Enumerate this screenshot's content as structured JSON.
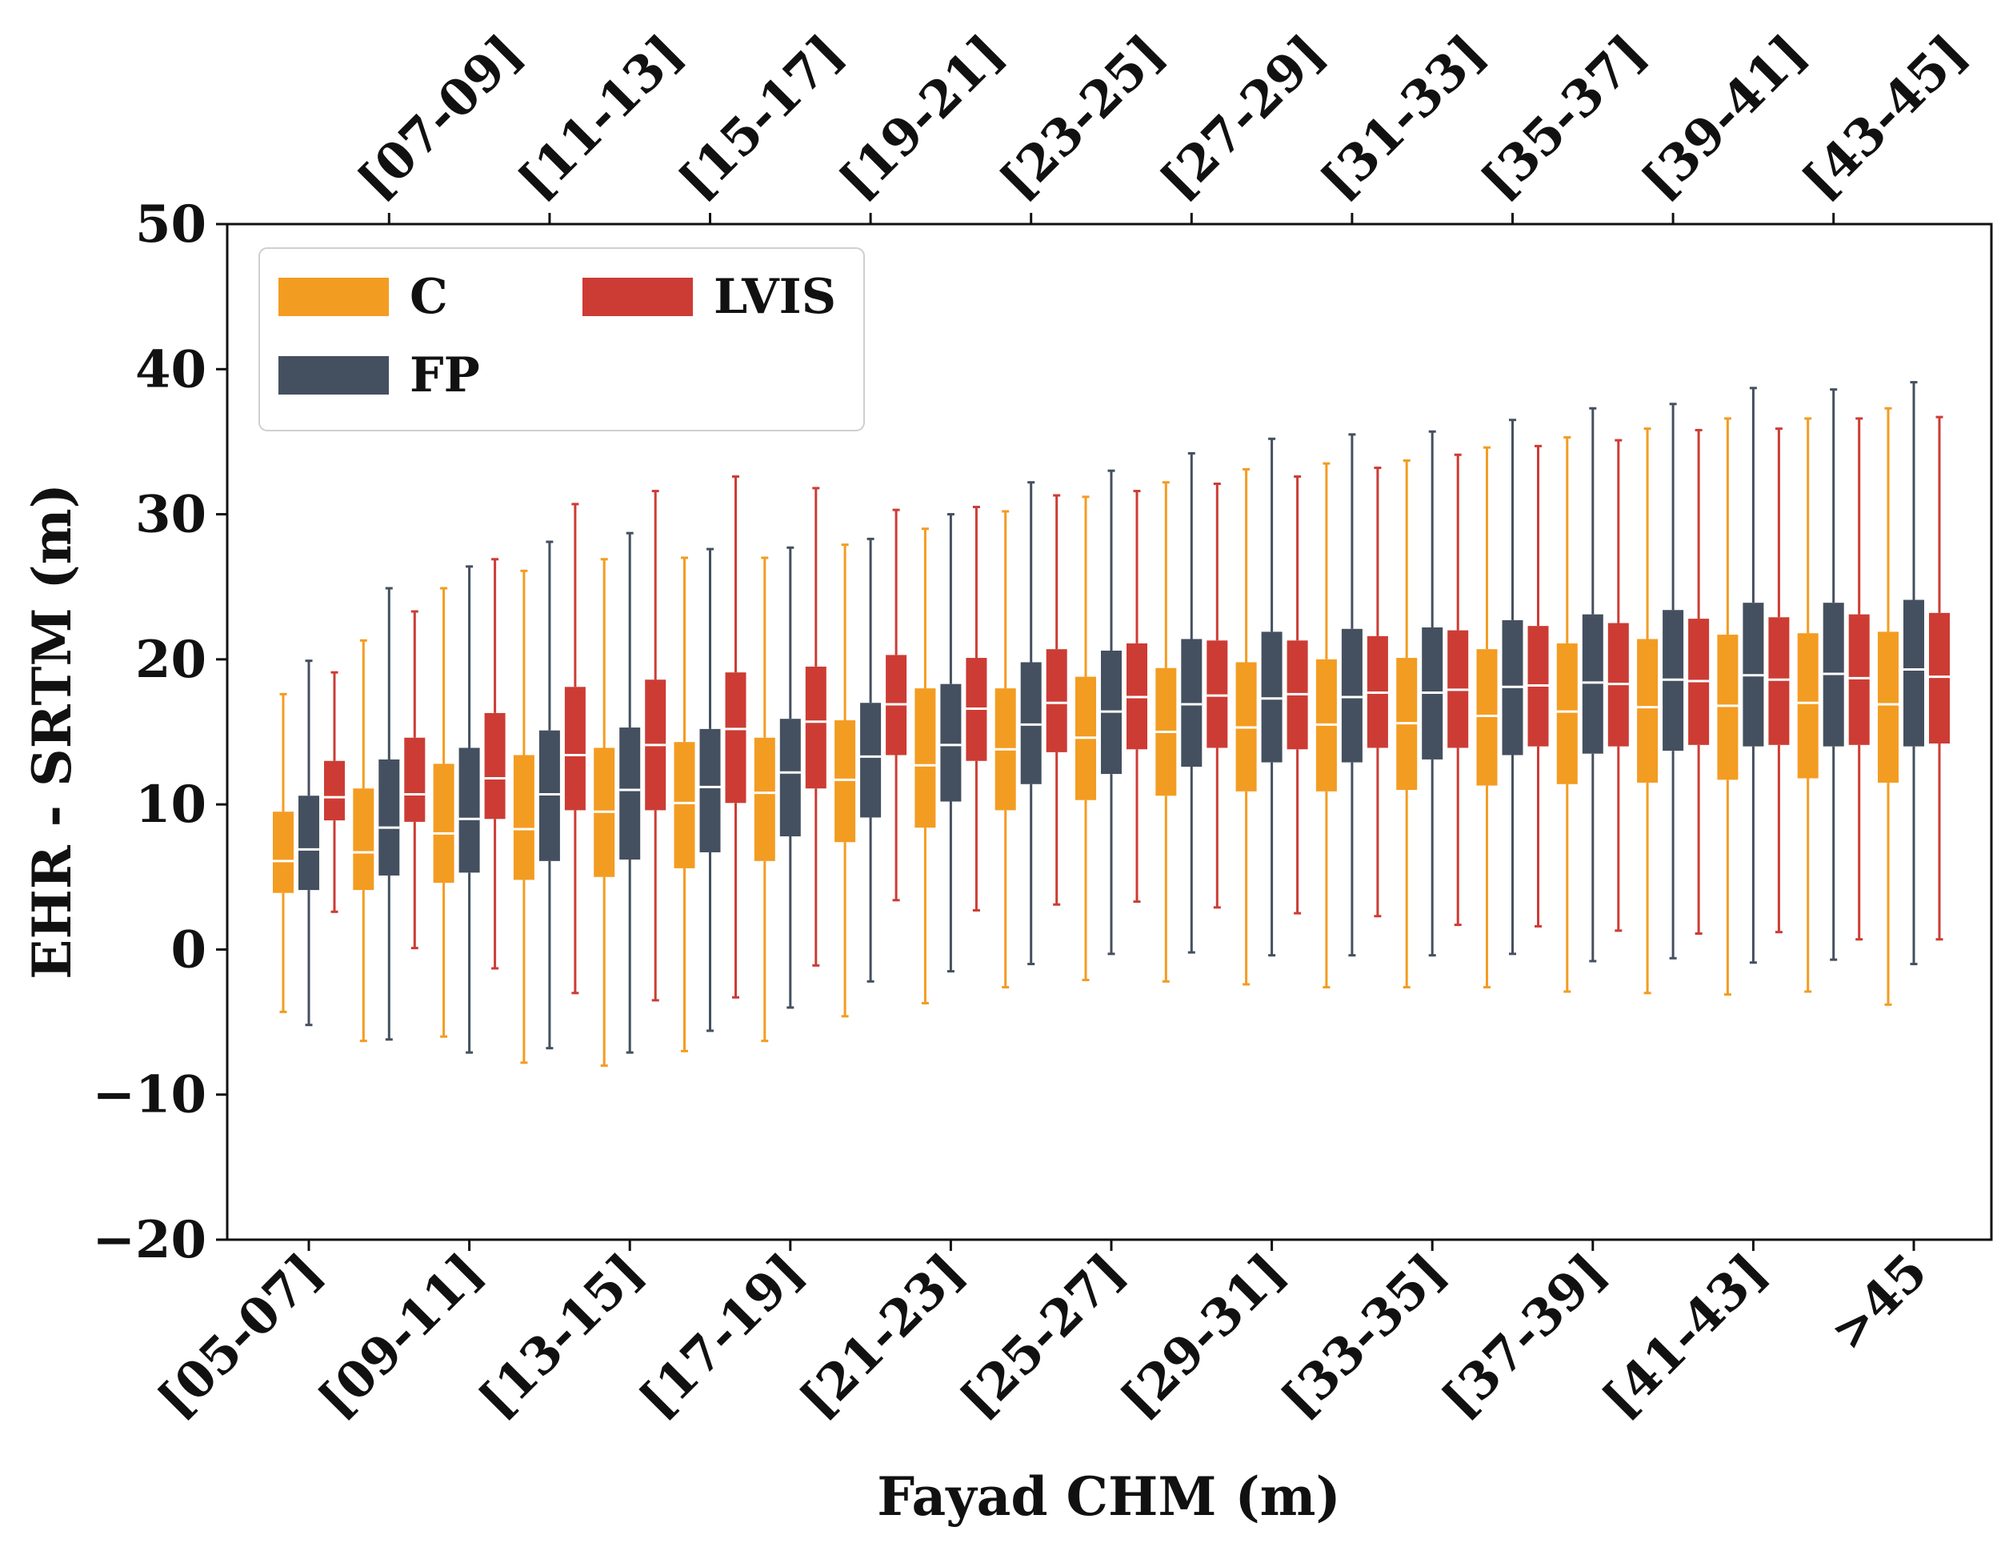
{
  "chart_data": {
    "type": "boxplot",
    "xlabel": "Fayad CHM (m)",
    "ylabel": "EHR - SRTM (m)",
    "ylim": [
      -20,
      50
    ],
    "yticks": [
      -20,
      -10,
      0,
      10,
      20,
      30,
      40,
      50
    ],
    "categories": [
      "[05-07]",
      "[07-09]",
      "[09-11]",
      "[11-13]",
      "[13-15]",
      "[15-17]",
      "[17-19]",
      "[19-21]",
      "[21-23]",
      "[23-25]",
      "[25-27]",
      "[27-29]",
      "[29-31]",
      "[31-33]",
      "[33-35]",
      "[35-37]",
      "[37-39]",
      "[39-41]",
      "[41-43]",
      "[43-45]",
      ">45"
    ],
    "bottom_tick_labels": [
      "[05-07]",
      "[09-11]",
      "[13-15]",
      "[17-19]",
      "[21-23]",
      "[25-27]",
      "[29-31]",
      "[33-35]",
      "[37-39]",
      "[41-43]",
      ">45"
    ],
    "top_tick_labels": [
      "[07-09]",
      "[11-13]",
      "[15-17]",
      "[19-21]",
      "[23-25]",
      "[27-29]",
      "[31-33]",
      "[35-37]",
      "[39-41]",
      "[43-45]"
    ],
    "legend_position": "top-left",
    "series": [
      {
        "name": "C",
        "color": "#f39c22",
        "boxes": [
          {
            "whislo": -4.3,
            "q1": 3.9,
            "med": 6.1,
            "q3": 9.5,
            "whishi": 17.6
          },
          {
            "whislo": -6.3,
            "q1": 4.1,
            "med": 6.7,
            "q3": 11.1,
            "whishi": 21.3
          },
          {
            "whislo": -6.0,
            "q1": 4.6,
            "med": 8.0,
            "q3": 12.8,
            "whishi": 24.9
          },
          {
            "whislo": -7.8,
            "q1": 4.8,
            "med": 8.3,
            "q3": 13.4,
            "whishi": 26.1
          },
          {
            "whislo": -8.0,
            "q1": 5.0,
            "med": 9.5,
            "q3": 13.9,
            "whishi": 26.9
          },
          {
            "whislo": -7.0,
            "q1": 5.6,
            "med": 10.1,
            "q3": 14.3,
            "whishi": 27.0
          },
          {
            "whislo": -6.3,
            "q1": 6.1,
            "med": 10.8,
            "q3": 14.6,
            "whishi": 27.0
          },
          {
            "whislo": -4.6,
            "q1": 7.4,
            "med": 11.7,
            "q3": 15.8,
            "whishi": 27.9
          },
          {
            "whislo": -3.7,
            "q1": 8.4,
            "med": 12.7,
            "q3": 18.0,
            "whishi": 29.0
          },
          {
            "whislo": -2.6,
            "q1": 9.6,
            "med": 13.8,
            "q3": 18.0,
            "whishi": 30.2
          },
          {
            "whislo": -2.1,
            "q1": 10.3,
            "med": 14.6,
            "q3": 18.8,
            "whishi": 31.2
          },
          {
            "whislo": -2.2,
            "q1": 10.6,
            "med": 15.0,
            "q3": 19.4,
            "whishi": 32.2
          },
          {
            "whislo": -2.4,
            "q1": 10.9,
            "med": 15.3,
            "q3": 19.8,
            "whishi": 33.1
          },
          {
            "whislo": -2.6,
            "q1": 10.9,
            "med": 15.5,
            "q3": 20.0,
            "whishi": 33.5
          },
          {
            "whislo": -2.6,
            "q1": 11.0,
            "med": 15.6,
            "q3": 20.1,
            "whishi": 33.7
          },
          {
            "whislo": -2.6,
            "q1": 11.3,
            "med": 16.1,
            "q3": 20.7,
            "whishi": 34.6
          },
          {
            "whislo": -2.9,
            "q1": 11.4,
            "med": 16.4,
            "q3": 21.1,
            "whishi": 35.3
          },
          {
            "whislo": -3.0,
            "q1": 11.5,
            "med": 16.7,
            "q3": 21.4,
            "whishi": 35.9
          },
          {
            "whislo": -3.1,
            "q1": 11.7,
            "med": 16.8,
            "q3": 21.7,
            "whishi": 36.6
          },
          {
            "whislo": -2.9,
            "q1": 11.8,
            "med": 17.0,
            "q3": 21.8,
            "whishi": 36.6
          },
          {
            "whislo": -3.8,
            "q1": 11.5,
            "med": 16.9,
            "q3": 21.9,
            "whishi": 37.3
          }
        ]
      },
      {
        "name": "FP",
        "color": "#44505f",
        "boxes": [
          {
            "whislo": -5.2,
            "q1": 4.1,
            "med": 6.9,
            "q3": 10.6,
            "whishi": 19.9
          },
          {
            "whislo": -6.2,
            "q1": 5.1,
            "med": 8.4,
            "q3": 13.1,
            "whishi": 24.9
          },
          {
            "whislo": -7.1,
            "q1": 5.3,
            "med": 9.0,
            "q3": 13.9,
            "whishi": 26.4
          },
          {
            "whislo": -6.8,
            "q1": 6.1,
            "med": 10.7,
            "q3": 15.1,
            "whishi": 28.1
          },
          {
            "whislo": -7.1,
            "q1": 6.2,
            "med": 11.0,
            "q3": 15.3,
            "whishi": 28.7
          },
          {
            "whislo": -5.6,
            "q1": 6.7,
            "med": 11.2,
            "q3": 15.2,
            "whishi": 27.6
          },
          {
            "whislo": -4.0,
            "q1": 7.8,
            "med": 12.2,
            "q3": 15.9,
            "whishi": 27.7
          },
          {
            "whislo": -2.2,
            "q1": 9.1,
            "med": 13.3,
            "q3": 17.0,
            "whishi": 28.3
          },
          {
            "whislo": -1.5,
            "q1": 10.2,
            "med": 14.1,
            "q3": 18.3,
            "whishi": 30.0
          },
          {
            "whislo": -1.0,
            "q1": 11.4,
            "med": 15.5,
            "q3": 19.8,
            "whishi": 32.2
          },
          {
            "whislo": -0.3,
            "q1": 12.1,
            "med": 16.4,
            "q3": 20.6,
            "whishi": 33.0
          },
          {
            "whislo": -0.2,
            "q1": 12.6,
            "med": 16.9,
            "q3": 21.4,
            "whishi": 34.2
          },
          {
            "whislo": -0.4,
            "q1": 12.9,
            "med": 17.3,
            "q3": 21.9,
            "whishi": 35.2
          },
          {
            "whislo": -0.4,
            "q1": 12.9,
            "med": 17.4,
            "q3": 22.1,
            "whishi": 35.5
          },
          {
            "whislo": -0.4,
            "q1": 13.1,
            "med": 17.7,
            "q3": 22.2,
            "whishi": 35.7
          },
          {
            "whislo": -0.3,
            "q1": 13.4,
            "med": 18.1,
            "q3": 22.7,
            "whishi": 36.5
          },
          {
            "whislo": -0.8,
            "q1": 13.5,
            "med": 18.4,
            "q3": 23.1,
            "whishi": 37.3
          },
          {
            "whislo": -0.6,
            "q1": 13.7,
            "med": 18.6,
            "q3": 23.4,
            "whishi": 37.6
          },
          {
            "whislo": -0.9,
            "q1": 14.0,
            "med": 18.9,
            "q3": 23.9,
            "whishi": 38.7
          },
          {
            "whislo": -0.7,
            "q1": 14.0,
            "med": 19.0,
            "q3": 23.9,
            "whishi": 38.6
          },
          {
            "whislo": -1.0,
            "q1": 14.0,
            "med": 19.3,
            "q3": 24.1,
            "whishi": 39.1
          }
        ]
      },
      {
        "name": "LVIS",
        "color": "#cc3c34",
        "boxes": [
          {
            "whislo": 2.6,
            "q1": 8.9,
            "med": 10.5,
            "q3": 13.0,
            "whishi": 19.1
          },
          {
            "whislo": 0.1,
            "q1": 8.8,
            "med": 10.7,
            "q3": 14.6,
            "whishi": 23.3
          },
          {
            "whislo": -1.3,
            "q1": 9.0,
            "med": 11.8,
            "q3": 16.3,
            "whishi": 26.9
          },
          {
            "whislo": -3.0,
            "q1": 9.6,
            "med": 13.4,
            "q3": 18.1,
            "whishi": 30.7
          },
          {
            "whislo": -3.5,
            "q1": 9.6,
            "med": 14.1,
            "q3": 18.6,
            "whishi": 31.6
          },
          {
            "whislo": -3.3,
            "q1": 10.1,
            "med": 15.2,
            "q3": 19.1,
            "whishi": 32.6
          },
          {
            "whislo": -1.1,
            "q1": 11.1,
            "med": 15.7,
            "q3": 19.5,
            "whishi": 31.8
          },
          {
            "whislo": 3.4,
            "q1": 13.4,
            "med": 16.9,
            "q3": 20.3,
            "whishi": 30.3
          },
          {
            "whislo": 2.7,
            "q1": 13.0,
            "med": 16.6,
            "q3": 20.1,
            "whishi": 30.5
          },
          {
            "whislo": 3.1,
            "q1": 13.6,
            "med": 17.0,
            "q3": 20.7,
            "whishi": 31.3
          },
          {
            "whislo": 3.3,
            "q1": 13.8,
            "med": 17.4,
            "q3": 21.1,
            "whishi": 31.6
          },
          {
            "whislo": 2.9,
            "q1": 13.9,
            "med": 17.5,
            "q3": 21.3,
            "whishi": 32.1
          },
          {
            "whislo": 2.5,
            "q1": 13.8,
            "med": 17.6,
            "q3": 21.3,
            "whishi": 32.6
          },
          {
            "whislo": 2.3,
            "q1": 13.9,
            "med": 17.7,
            "q3": 21.6,
            "whishi": 33.2
          },
          {
            "whislo": 1.7,
            "q1": 13.9,
            "med": 17.9,
            "q3": 22.0,
            "whishi": 34.1
          },
          {
            "whislo": 1.6,
            "q1": 14.0,
            "med": 18.2,
            "q3": 22.3,
            "whishi": 34.7
          },
          {
            "whislo": 1.3,
            "q1": 14.0,
            "med": 18.3,
            "q3": 22.5,
            "whishi": 35.1
          },
          {
            "whislo": 1.1,
            "q1": 14.1,
            "med": 18.5,
            "q3": 22.8,
            "whishi": 35.8
          },
          {
            "whislo": 1.2,
            "q1": 14.1,
            "med": 18.6,
            "q3": 22.9,
            "whishi": 35.9
          },
          {
            "whislo": 0.7,
            "q1": 14.1,
            "med": 18.7,
            "q3": 23.1,
            "whishi": 36.6
          },
          {
            "whislo": 0.7,
            "q1": 14.2,
            "med": 18.8,
            "q3": 23.2,
            "whishi": 36.7
          }
        ]
      }
    ]
  }
}
